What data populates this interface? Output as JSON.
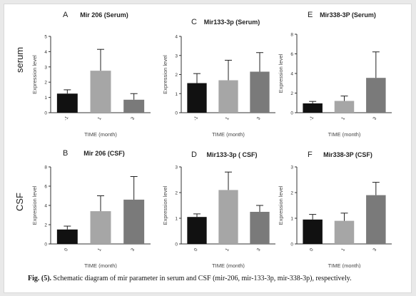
{
  "row_labels": {
    "top": "serum",
    "bottom": "CSF"
  },
  "caption": {
    "label": "Fig. (5).",
    "text": "Schematic diagram of mir parameter in serum and CSF (mir-206, mir-133-3p, mir-338-3p), respectively."
  },
  "colors": {
    "black": "#111111",
    "light_gray": "#a6a6a6",
    "dark_gray": "#7a7a7a",
    "axis": "#333333"
  },
  "chart_data": [
    {
      "panel": "A",
      "title": "Mir 206 (Serum)",
      "type": "bar",
      "categories": [
        "-1",
        "1",
        "3"
      ],
      "values": [
        1.25,
        2.75,
        0.85
      ],
      "errors": [
        0.25,
        1.4,
        0.4
      ],
      "ylim": [
        0,
        5
      ],
      "yticks": [
        "0",
        "1",
        "2",
        "3",
        "4",
        "5"
      ],
      "ylabel": "Expression level",
      "xlabel": "TIME (month)"
    },
    {
      "panel": "C",
      "title": "Mir133-3p (Serum)",
      "type": "bar",
      "categories": [
        "-1",
        "1",
        "3"
      ],
      "values": [
        1.55,
        1.7,
        2.15
      ],
      "errors": [
        0.5,
        1.05,
        1.0
      ],
      "ylim": [
        0,
        4
      ],
      "yticks": [
        "0",
        "1",
        "2",
        "3",
        "4"
      ],
      "ylabel": "Expression level",
      "xlabel": "TIME (month)"
    },
    {
      "panel": "E",
      "title": "Mir338-3P (Serum)",
      "type": "bar",
      "categories": [
        "-1",
        "1",
        "3"
      ],
      "values": [
        0.95,
        1.2,
        3.55
      ],
      "errors": [
        0.2,
        0.5,
        2.65
      ],
      "ylim": [
        0,
        8
      ],
      "yticks": [
        "0",
        "2",
        "4",
        "6",
        "8"
      ],
      "ylabel": "Expression level",
      "xlabel": "TIME (month)"
    },
    {
      "panel": "B",
      "title": "Mir 206 (CSF)",
      "type": "bar",
      "categories": [
        "0",
        "1",
        "3"
      ],
      "values": [
        1.5,
        3.4,
        4.6
      ],
      "errors": [
        0.35,
        1.6,
        2.4
      ],
      "ylim": [
        0,
        8
      ],
      "yticks": [
        "0",
        "2",
        "4",
        "6",
        "8"
      ],
      "ylabel": "Expression level",
      "xlabel": "TIME (month)"
    },
    {
      "panel": "D",
      "title": "Mir133-3p ( CSF)",
      "type": "bar",
      "categories": [
        "0",
        "1",
        "3"
      ],
      "values": [
        1.05,
        2.1,
        1.25
      ],
      "errors": [
        0.12,
        0.7,
        0.25
      ],
      "ylim": [
        0,
        3
      ],
      "yticks": [
        "0",
        "1",
        "2",
        "3"
      ],
      "ylabel": "Expression level",
      "xlabel": "TIME (month)"
    },
    {
      "panel": "F",
      "title": "Mir338-3P (CSF)",
      "type": "bar",
      "categories": [
        "0",
        "1",
        "3"
      ],
      "values": [
        0.95,
        0.9,
        1.9
      ],
      "errors": [
        0.2,
        0.3,
        0.5
      ],
      "ylim": [
        0,
        3
      ],
      "yticks": [
        "0",
        "1",
        "2",
        "3"
      ],
      "ylabel": "Expression level",
      "xlabel": "TIME (month)"
    }
  ]
}
